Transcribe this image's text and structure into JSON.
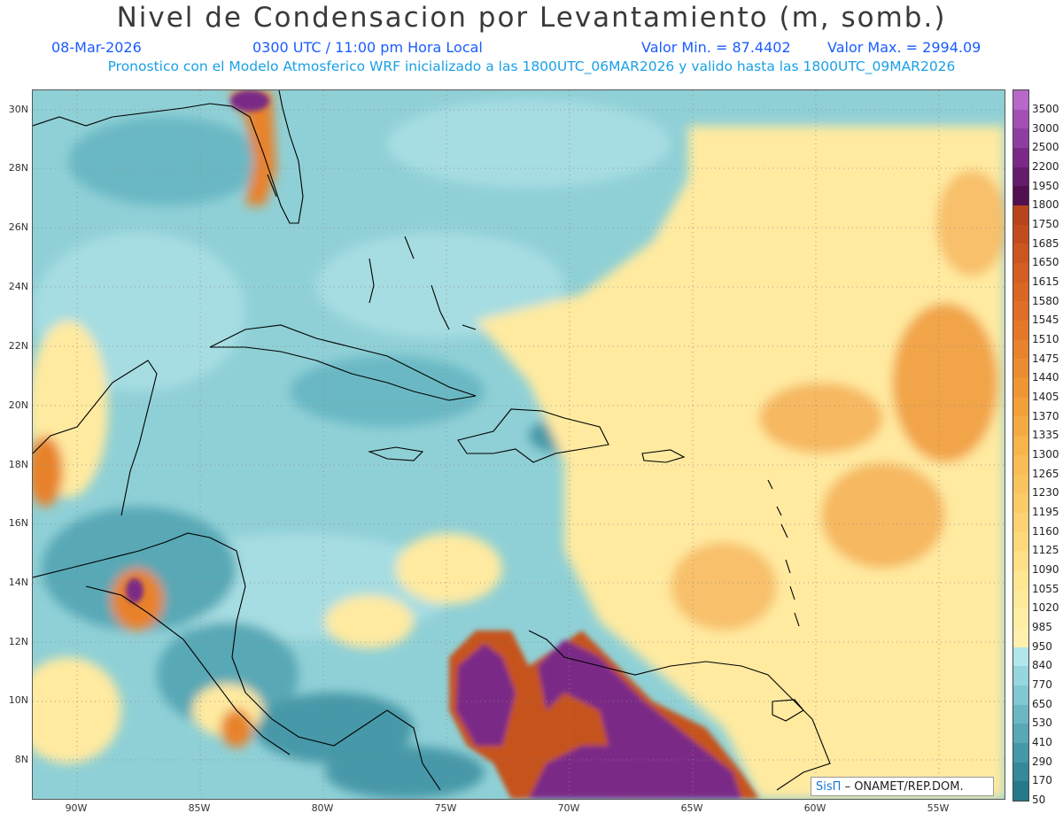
{
  "title": "Nivel de Condensacion por Levantamiento (m, somb.)",
  "date": "08-Mar-2026",
  "time": "0300 UTC / 11:00 pm Hora Local",
  "valmin": "Valor Min. = 87.4402",
  "valmax": "Valor Max. = 2994.09",
  "forecast": "Pronostico con el Modelo Atmosferico WRF inicializado a las 1800UTC_06MAR2026 y valido hasta las  1800UTC_09MAR2026",
  "lat_labels": [
    "30N",
    "28N",
    "26N",
    "24N",
    "22N",
    "20N",
    "18N",
    "16N",
    "14N",
    "12N",
    "10N",
    "8N"
  ],
  "lon_labels": [
    "90W",
    "85W",
    "80W",
    "75W",
    "70W",
    "65W",
    "60W",
    "55W"
  ],
  "colorbar": {
    "labels": [
      "3500",
      "3000",
      "2500",
      "2200",
      "1950",
      "1800",
      "1750",
      "1685",
      "1650",
      "1615",
      "1580",
      "1545",
      "1510",
      "1475",
      "1440",
      "1405",
      "1370",
      "1335",
      "1300",
      "1265",
      "1230",
      "1195",
      "1160",
      "1125",
      "1090",
      "1055",
      "1020",
      "985",
      "950",
      "840",
      "770",
      "650",
      "530",
      "410",
      "290",
      "170",
      "50"
    ],
    "colors": [
      "#b868c8",
      "#a350b4",
      "#8e3ea0",
      "#7a2a86",
      "#661c6c",
      "#521050",
      "#b8441c",
      "#c24c1e",
      "#cc5620",
      "#d45e22",
      "#da6624",
      "#e06e26",
      "#e47828",
      "#e8822c",
      "#ec8c30",
      "#ef9634",
      "#f2a03a",
      "#f4aa42",
      "#f6b44a",
      "#f8bd54",
      "#f9c45e",
      "#fbcb68",
      "#fcd272",
      "#fdd97c",
      "#fee086",
      "#ffe690",
      "#ffea9a",
      "#ffeea4",
      "#fff0ae",
      "#b0e6ec",
      "#96d6de",
      "#80c8d2",
      "#6bb8c4",
      "#58a8b6",
      "#4698a8",
      "#36889a",
      "#28788c"
    ]
  },
  "logo": {
    "brand": "SisΠ",
    "text": "– ONAMET/REP.DOM."
  },
  "colors": {
    "title": "#3a3a3a",
    "date": "#1a5cff",
    "forecast": "#1aa0e6",
    "sea_base": "#8fd0d6"
  }
}
